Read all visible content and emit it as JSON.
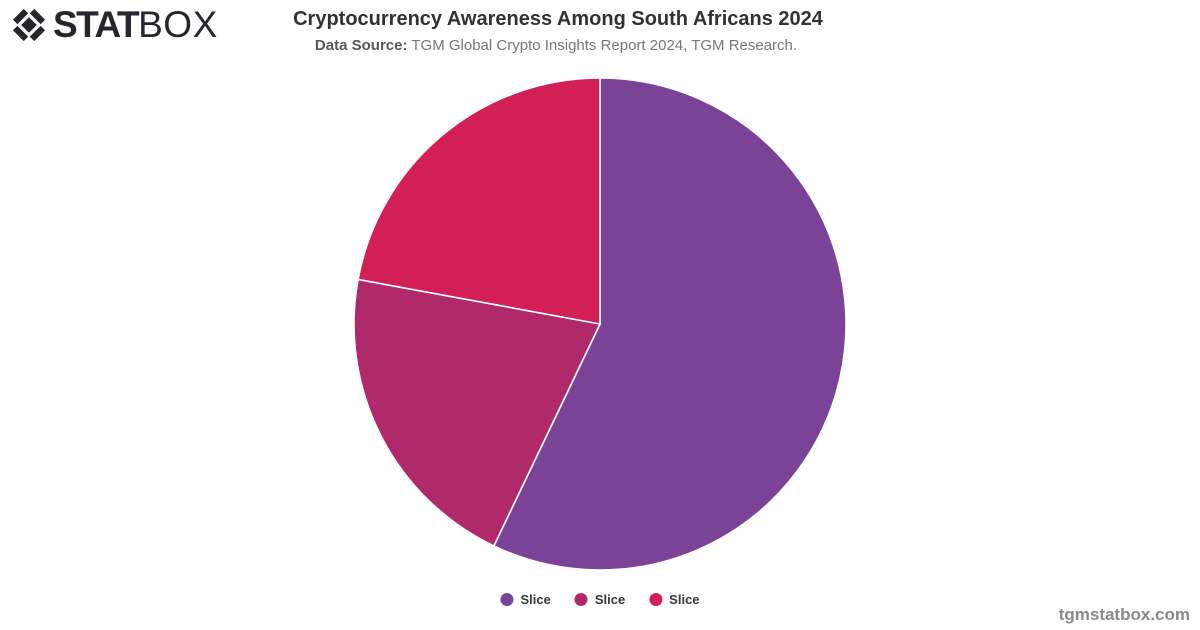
{
  "brand": {
    "name_bold": "STAT",
    "name_light": "BOX",
    "color": "#26262c"
  },
  "header": {
    "title": "Cryptocurrency Awareness Among South Africans 2024",
    "data_source_label": "Data Source:",
    "data_source_text": " TGM Global Crypto Insights Report 2024, TGM Research."
  },
  "chart_data": {
    "type": "pie",
    "title": "Cryptocurrency Awareness Among South Africans 2024",
    "direction": "clockwise",
    "start_angle_deg": 0,
    "legend_position": "bottom",
    "slice_border_color": "#ffffff",
    "slices": [
      {
        "label": "Slice",
        "value": 57.1,
        "color": "#7B4397"
      },
      {
        "label": "Slice",
        "value": 20.8,
        "color": "#B02A6B"
      },
      {
        "label": "Slice",
        "value": 22.1,
        "color": "#D21F56"
      }
    ]
  },
  "footer": {
    "watermark": "tgmstatbox.com"
  }
}
